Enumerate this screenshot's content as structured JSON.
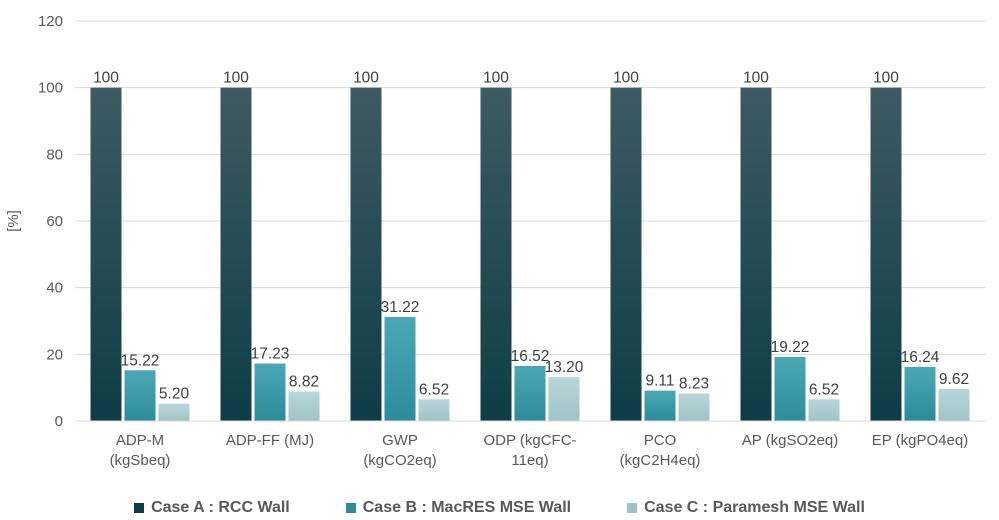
{
  "chart_data": {
    "type": "bar",
    "ylabel": "[%]",
    "ylim": [
      0,
      120
    ],
    "yticks": [
      0,
      20,
      40,
      60,
      80,
      100,
      120
    ],
    "grid": true,
    "legend_position": "bottom",
    "categories": [
      [
        "ADP-M",
        "(kgSbeq)"
      ],
      [
        "ADP-FF (MJ)"
      ],
      [
        "GWP",
        "(kgCO2eq)"
      ],
      [
        "ODP (kgCFC-",
        "11eq)"
      ],
      [
        "PCO",
        "(kgC2H4eq)"
      ],
      [
        "AP (kgSO2eq)"
      ],
      [
        "EP (kgPO4eq)"
      ]
    ],
    "series": [
      {
        "name": "Case A : RCC Wall",
        "values": [
          100,
          100,
          100,
          100,
          100,
          100,
          100
        ],
        "labels": [
          "100",
          "100",
          "100",
          "100",
          "100",
          "100",
          "100"
        ],
        "color": "#0d3d47",
        "color_top": "#3e5a62"
      },
      {
        "name": "Case B : MacRES MSE Wall",
        "values": [
          15.22,
          17.23,
          31.22,
          16.52,
          9.11,
          19.22,
          16.24
        ],
        "labels": [
          "15.22",
          "17.23",
          "31.22",
          "16.52",
          "9.11",
          "19.22",
          "16.24"
        ],
        "color": "#2d8c9c",
        "color_top": "#4ba7b3"
      },
      {
        "name": "Case C : Paramesh MSE Wall",
        "values": [
          5.2,
          8.82,
          6.52,
          13.2,
          8.23,
          6.52,
          9.62
        ],
        "labels": [
          "5.20",
          "8.82",
          "6.52",
          "13.20",
          "8.23",
          "6.52",
          "9.62"
        ],
        "color": "#9fc3c7",
        "color_top": "#b9d6d9"
      }
    ]
  }
}
